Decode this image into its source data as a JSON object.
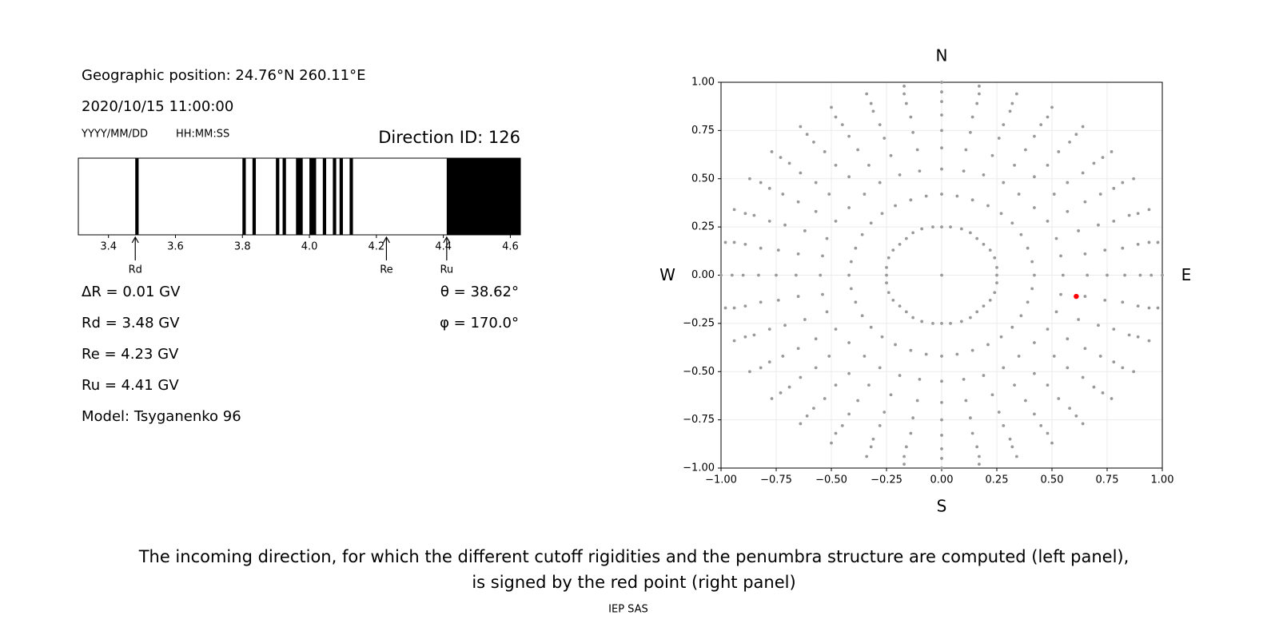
{
  "header": {
    "position": "Geographic position: 24.76°N 260.11°E",
    "datetime": "2020/10/15 11:00:00",
    "date_format": "YYYY/MM/DD",
    "time_format": "HH:MM:SS",
    "direction": "Direction ID: 126"
  },
  "results": {
    "left": [
      "ΔR = 0.01 GV",
      "Rd = 3.48 GV",
      "Re = 4.23 GV",
      "Ru = 4.41 GV",
      "Model: Tsyganenko 96"
    ],
    "right": [
      "θ = 38.62°",
      "φ = 170.0°"
    ]
  },
  "chart_data": [
    {
      "type": "bands",
      "color": "#000000",
      "xlim": [
        3.31,
        4.63
      ],
      "xticks": [
        3.4,
        3.6,
        3.8,
        {
          "value": 4,
          "label": "4.0"
        },
        4.2,
        4.4,
        4.6
      ],
      "bands": [
        {
          "start": 3.48,
          "end": 3.49
        },
        {
          "start": 3.8,
          "end": 3.81
        },
        {
          "start": 3.83,
          "end": 3.84
        },
        {
          "start": 3.9,
          "end": 3.91
        },
        {
          "start": 3.92,
          "end": 3.93
        },
        {
          "start": 3.96,
          "end": 3.98
        },
        {
          "start": 4,
          "end": 4.02
        },
        {
          "start": 4.04,
          "end": 4.05
        },
        {
          "start": 4.07,
          "end": 4.08
        },
        {
          "start": 4.09,
          "end": 4.1
        },
        {
          "start": 4.12,
          "end": 4.13
        },
        {
          "start": 4.41,
          "end": 4.63
        }
      ],
      "markers": [
        {
          "label": "Rd",
          "value": 3.48
        },
        {
          "label": "Re",
          "value": 4.23
        },
        {
          "label": "Ru",
          "value": 4.41
        }
      ]
    },
    {
      "type": "scatter",
      "grid": true,
      "xlim": [
        -1,
        1
      ],
      "ylim": [
        -1,
        1
      ],
      "xticks": [
        {
          "value": -1,
          "label": "−1.00"
        },
        {
          "value": -0.75,
          "label": "−0.75"
        },
        {
          "value": -0.5,
          "label": "−0.50"
        },
        {
          "value": -0.25,
          "label": "−0.25"
        },
        {
          "value": 0,
          "label": "0.00"
        },
        {
          "value": 0.25,
          "label": "0.25"
        },
        {
          "value": 0.5,
          "label": "0.50"
        },
        {
          "value": 0.75,
          "label": "0.75"
        },
        {
          "value": 1,
          "label": "1.00"
        }
      ],
      "yticks": [
        {
          "value": -1,
          "label": "−1.00"
        },
        {
          "value": -0.75,
          "label": "−0.75"
        },
        {
          "value": -0.5,
          "label": "−0.50"
        },
        {
          "value": -0.25,
          "label": "−0.25"
        },
        {
          "value": 0,
          "label": "0.00"
        },
        {
          "value": 0.25,
          "label": "0.25"
        },
        {
          "value": 0.5,
          "label": "0.50"
        },
        {
          "value": 0.75,
          "label": "0.75"
        },
        {
          "value": 1,
          "label": "1.00"
        }
      ],
      "compass": {
        "north": "N",
        "south": "S",
        "west": "W",
        "east": "E"
      },
      "series": [
        {
          "color": "#999999",
          "x": [
            0.25,
            0.42,
            0.55,
            0.66,
            0.75,
            0.83,
            0.9,
            0.95,
            1,
            0.25,
            0.41,
            0.54,
            0.65,
            0.74,
            0.82,
            0.89,
            0.94,
            0.98,
            0.24,
            0.39,
            0.52,
            0.62,
            0.71,
            0.78,
            0.85,
            0.89,
            0.94,
            0.22,
            0.36,
            0.48,
            0.57,
            0.65,
            0.72,
            0.78,
            0.82,
            0.87,
            0.19,
            0.32,
            0.42,
            0.51,
            0.57,
            0.64,
            0.69,
            0.73,
            0.77,
            0.16,
            0.27,
            0.35,
            0.42,
            0.48,
            0.53,
            0.58,
            0.61,
            0.64,
            0.13,
            0.21,
            0.28,
            0.33,
            0.38,
            0.42,
            0.45,
            0.48,
            0.5,
            0.09,
            0.14,
            0.19,
            0.23,
            0.26,
            0.28,
            0.31,
            0.32,
            0.34,
            0.04,
            0.07,
            0.1,
            0.11,
            0.13,
            0.14,
            0.16,
            0.17,
            0.17,
            0,
            0,
            0,
            0,
            0,
            0,
            0,
            0,
            0,
            -0.04,
            -0.07,
            -0.1,
            -0.11,
            -0.13,
            -0.14,
            -0.16,
            -0.17,
            -0.17,
            -0.09,
            -0.14,
            -0.19,
            -0.23,
            -0.26,
            -0.28,
            -0.31,
            -0.32,
            -0.34,
            -0.13,
            -0.21,
            -0.28,
            -0.33,
            -0.38,
            -0.42,
            -0.45,
            -0.48,
            -0.5,
            -0.16,
            -0.27,
            -0.35,
            -0.42,
            -0.48,
            -0.53,
            -0.58,
            -0.61,
            -0.64,
            -0.19,
            -0.32,
            -0.42,
            -0.51,
            -0.57,
            -0.64,
            -0.69,
            -0.73,
            -0.77,
            -0.22,
            -0.36,
            -0.48,
            -0.57,
            -0.65,
            -0.72,
            -0.78,
            -0.82,
            -0.87,
            -0.24,
            -0.39,
            -0.52,
            -0.62,
            -0.71,
            -0.78,
            -0.85,
            -0.89,
            -0.94,
            -0.25,
            -0.41,
            -0.54,
            -0.65,
            -0.74,
            -0.82,
            -0.89,
            -0.94,
            -0.98,
            -0.25,
            -0.42,
            -0.55,
            -0.66,
            -0.75,
            -0.83,
            -0.9,
            -0.95,
            -1,
            -0.25,
            -0.41,
            -0.54,
            -0.65,
            -0.74,
            -0.82,
            -0.89,
            -0.94,
            -0.98,
            -0.24,
            -0.39,
            -0.52,
            -0.62,
            -0.71,
            -0.78,
            -0.85,
            -0.89,
            -0.94,
            -0.22,
            -0.36,
            -0.48,
            -0.57,
            -0.65,
            -0.72,
            -0.78,
            -0.82,
            -0.87,
            -0.19,
            -0.32,
            -0.42,
            -0.51,
            -0.57,
            -0.64,
            -0.69,
            -0.73,
            -0.77,
            -0.16,
            -0.27,
            -0.35,
            -0.42,
            -0.48,
            -0.53,
            -0.58,
            -0.61,
            -0.64,
            -0.13,
            -0.21,
            -0.28,
            -0.33,
            -0.38,
            -0.42,
            -0.45,
            -0.48,
            -0.5,
            -0.09,
            -0.14,
            -0.19,
            -0.23,
            -0.26,
            -0.28,
            -0.31,
            -0.32,
            -0.34,
            -0.04,
            -0.07,
            -0.1,
            -0.11,
            -0.13,
            -0.14,
            -0.16,
            -0.17,
            -0.17,
            0,
            0,
            0,
            0,
            0,
            0,
            0,
            0,
            0,
            0.04,
            0.07,
            0.1,
            0.11,
            0.13,
            0.14,
            0.16,
            0.17,
            0.17,
            0.09,
            0.14,
            0.19,
            0.23,
            0.26,
            0.28,
            0.31,
            0.32,
            0.34,
            0.13,
            0.21,
            0.28,
            0.33,
            0.38,
            0.42,
            0.45,
            0.48,
            0.5,
            0.16,
            0.27,
            0.35,
            0.42,
            0.48,
            0.53,
            0.58,
            0.61,
            0.64,
            0.19,
            0.32,
            0.42,
            0.51,
            0.57,
            0.64,
            0.69,
            0.73,
            0.77,
            0.22,
            0.36,
            0.48,
            0.57,
            0.65,
            0.72,
            0.78,
            0.82,
            0.87,
            0.24,
            0.39,
            0.52,
            0.62,
            0.71,
            0.78,
            0.85,
            0.89,
            0.94,
            0.25,
            0.41,
            0.54,
            0.65,
            0.74,
            0.82,
            0.89,
            0.94,
            0.98,
            0
          ],
          "y": [
            0,
            0,
            0,
            0,
            0,
            0,
            0,
            0,
            0,
            0.04,
            0.07,
            0.1,
            0.11,
            0.13,
            0.14,
            0.16,
            0.17,
            0.17,
            0.09,
            0.14,
            0.19,
            0.23,
            0.26,
            0.28,
            0.31,
            0.32,
            0.34,
            0.13,
            0.21,
            0.28,
            0.33,
            0.38,
            0.42,
            0.45,
            0.48,
            0.5,
            0.16,
            0.27,
            0.35,
            0.42,
            0.48,
            0.53,
            0.58,
            0.61,
            0.64,
            0.19,
            0.32,
            0.42,
            0.51,
            0.57,
            0.64,
            0.69,
            0.73,
            0.77,
            0.22,
            0.36,
            0.48,
            0.57,
            0.65,
            0.72,
            0.78,
            0.82,
            0.87,
            0.24,
            0.39,
            0.52,
            0.62,
            0.71,
            0.78,
            0.85,
            0.89,
            0.94,
            0.25,
            0.41,
            0.54,
            0.65,
            0.74,
            0.82,
            0.89,
            0.94,
            0.98,
            0.25,
            0.42,
            0.55,
            0.66,
            0.75,
            0.83,
            0.9,
            0.95,
            1,
            0.25,
            0.41,
            0.54,
            0.65,
            0.74,
            0.82,
            0.89,
            0.94,
            0.98,
            0.24,
            0.39,
            0.52,
            0.62,
            0.71,
            0.78,
            0.85,
            0.89,
            0.94,
            0.22,
            0.36,
            0.48,
            0.57,
            0.65,
            0.72,
            0.78,
            0.82,
            0.87,
            0.19,
            0.32,
            0.42,
            0.51,
            0.57,
            0.64,
            0.69,
            0.73,
            0.77,
            0.16,
            0.27,
            0.35,
            0.42,
            0.48,
            0.53,
            0.58,
            0.61,
            0.64,
            0.13,
            0.21,
            0.28,
            0.33,
            0.38,
            0.42,
            0.45,
            0.48,
            0.5,
            0.09,
            0.14,
            0.19,
            0.23,
            0.26,
            0.28,
            0.31,
            0.32,
            0.34,
            0.04,
            0.07,
            0.1,
            0.11,
            0.13,
            0.14,
            0.16,
            0.17,
            0.17,
            0,
            0,
            0,
            0,
            0,
            0,
            0,
            0,
            0,
            -0.04,
            -0.07,
            -0.1,
            -0.11,
            -0.13,
            -0.14,
            -0.16,
            -0.17,
            -0.17,
            -0.09,
            -0.14,
            -0.19,
            -0.23,
            -0.26,
            -0.28,
            -0.31,
            -0.32,
            -0.34,
            -0.13,
            -0.21,
            -0.28,
            -0.33,
            -0.38,
            -0.42,
            -0.45,
            -0.48,
            -0.5,
            -0.16,
            -0.27,
            -0.35,
            -0.42,
            -0.48,
            -0.53,
            -0.58,
            -0.61,
            -0.64,
            -0.19,
            -0.32,
            -0.42,
            -0.51,
            -0.57,
            -0.64,
            -0.69,
            -0.73,
            -0.77,
            -0.22,
            -0.36,
            -0.48,
            -0.57,
            -0.65,
            -0.72,
            -0.78,
            -0.82,
            -0.87,
            -0.24,
            -0.39,
            -0.52,
            -0.62,
            -0.71,
            -0.78,
            -0.85,
            -0.89,
            -0.94,
            -0.25,
            -0.41,
            -0.54,
            -0.65,
            -0.74,
            -0.82,
            -0.89,
            -0.94,
            -0.98,
            -0.25,
            -0.42,
            -0.55,
            -0.66,
            -0.75,
            -0.83,
            -0.9,
            -0.95,
            -1,
            -0.25,
            -0.41,
            -0.54,
            -0.65,
            -0.74,
            -0.82,
            -0.89,
            -0.94,
            -0.98,
            -0.24,
            -0.39,
            -0.52,
            -0.62,
            -0.71,
            -0.78,
            -0.85,
            -0.89,
            -0.94,
            -0.22,
            -0.36,
            -0.48,
            -0.57,
            -0.65,
            -0.72,
            -0.78,
            -0.82,
            -0.87,
            -0.19,
            -0.32,
            -0.42,
            -0.51,
            -0.57,
            -0.64,
            -0.69,
            -0.73,
            -0.77,
            -0.16,
            -0.27,
            -0.35,
            -0.42,
            -0.48,
            -0.53,
            -0.58,
            -0.61,
            -0.64,
            -0.13,
            -0.21,
            -0.28,
            -0.33,
            -0.38,
            -0.42,
            -0.45,
            -0.48,
            -0.5,
            -0.09,
            -0.14,
            -0.19,
            -0.23,
            -0.26,
            -0.28,
            -0.31,
            -0.32,
            -0.34,
            -0.04,
            -0.07,
            -0.1,
            -0.11,
            -0.13,
            -0.14,
            -0.16,
            -0.17,
            -0.17,
            0
          ]
        },
        {
          "color": "#ff0000",
          "x": [
            0.61
          ],
          "y": [
            -0.11
          ]
        }
      ]
    }
  ],
  "caption": [
    "The incoming direction, for which the different cutoff rigidities and the penumbra structure are computed (left panel),",
    "is signed by the red point (right panel)"
  ],
  "footer": "IEP SAS"
}
